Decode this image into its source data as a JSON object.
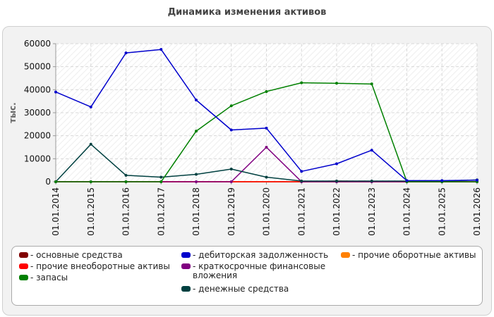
{
  "chart_data": {
    "type": "line",
    "title": "Динамика изменения активов",
    "ylabel": "тыс.",
    "xlabel": "",
    "ylim": [
      0,
      60000
    ],
    "yticks": [
      0,
      10000,
      20000,
      30000,
      40000,
      50000,
      60000
    ],
    "categories": [
      "01.01.2014",
      "01.01.2015",
      "01.01.2016",
      "01.01.2017",
      "01.01.2018",
      "01.01.2019",
      "01.01.2020",
      "01.01.2021",
      "01.01.2022",
      "01.01.2023",
      "01.01.2024",
      "01.01.2025",
      "01.01.2026"
    ],
    "grid": true,
    "legend_position": "bottom",
    "series": [
      {
        "name": "основные средства",
        "color": "#800000",
        "values": [
          0,
          0,
          0,
          0,
          0,
          0,
          0,
          0,
          0,
          0,
          0,
          0,
          0
        ],
        "markers": false
      },
      {
        "name": "прочие внеоборотные активы",
        "color": "#ff0000",
        "values": [
          0,
          0,
          0,
          0,
          0,
          0,
          0,
          0,
          300,
          200,
          0,
          0,
          0
        ],
        "markers": false
      },
      {
        "name": "запасы",
        "color": "#008000",
        "values": [
          0,
          0,
          0,
          0,
          22000,
          33000,
          39200,
          43000,
          42800,
          42500,
          0,
          0,
          0
        ],
        "markers": true
      },
      {
        "name": "дебиторская задолженность",
        "color": "#0000cc",
        "values": [
          39000,
          32500,
          56000,
          57500,
          35500,
          22500,
          23300,
          4500,
          7800,
          13700,
          500,
          500,
          700
        ],
        "markers": true
      },
      {
        "name": "краткосрочные финансовые вложения",
        "color": "#800080",
        "values": [
          0,
          0,
          0,
          0,
          0,
          0,
          15000,
          0,
          0,
          0,
          0,
          0,
          0
        ],
        "markers": true
      },
      {
        "name": "денежные средства",
        "color": "#004040",
        "values": [
          0,
          16300,
          2800,
          2000,
          3200,
          5500,
          2000,
          300,
          300,
          300,
          300,
          300,
          800
        ],
        "markers": true
      },
      {
        "name": "прочие оборотные активы",
        "color": "#ff8000",
        "values": [
          0,
          0,
          0,
          0,
          0,
          0,
          0,
          0,
          0,
          0,
          0,
          0,
          0
        ],
        "markers": false
      }
    ]
  },
  "legend": {
    "columns": [
      [
        0,
        1,
        2
      ],
      [
        3,
        4,
        5
      ],
      [
        6
      ]
    ]
  }
}
